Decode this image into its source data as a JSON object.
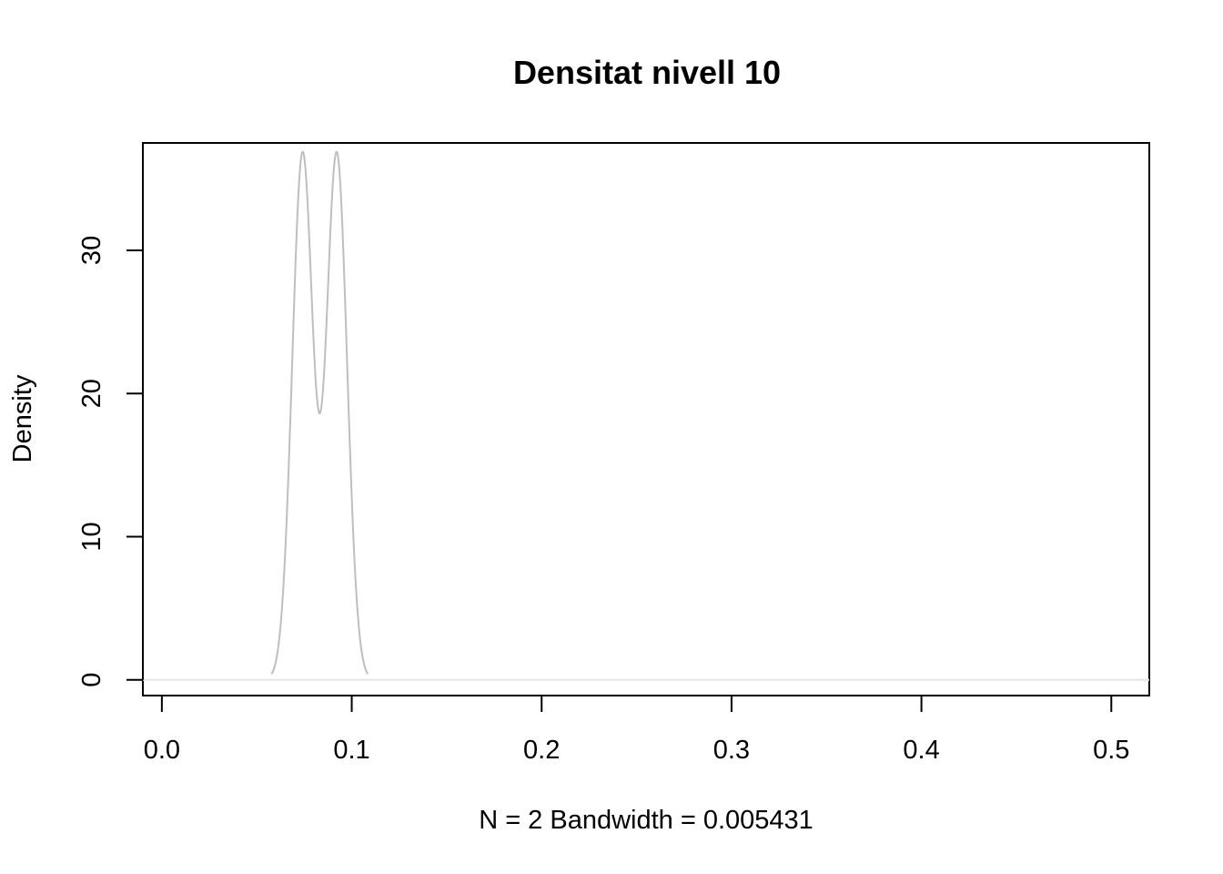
{
  "chart_data": {
    "type": "line",
    "title": "Densitat nivell 10",
    "xlabel": "N = 2   Bandwidth = 0.005431",
    "ylabel": "Density",
    "xlim": [
      -0.01,
      0.52
    ],
    "ylim": [
      -1.1,
      37.5
    ],
    "x_ticks": [
      0.0,
      0.1,
      0.2,
      0.3,
      0.4,
      0.5
    ],
    "x_tick_labels": [
      "0.0",
      "0.1",
      "0.2",
      "0.3",
      "0.4",
      "0.5"
    ],
    "y_ticks": [
      0,
      10,
      20,
      30
    ],
    "y_tick_labels": [
      "0",
      "10",
      "20",
      "30"
    ],
    "grid": false,
    "baseline": 0,
    "series": [
      {
        "color": "#bebebe",
        "kernel": "gaussian",
        "bandwidth": 0.005431,
        "observations": [
          0.0741,
          0.0921
        ],
        "x_range": [
          0.0578,
          0.1084
        ]
      }
    ]
  }
}
